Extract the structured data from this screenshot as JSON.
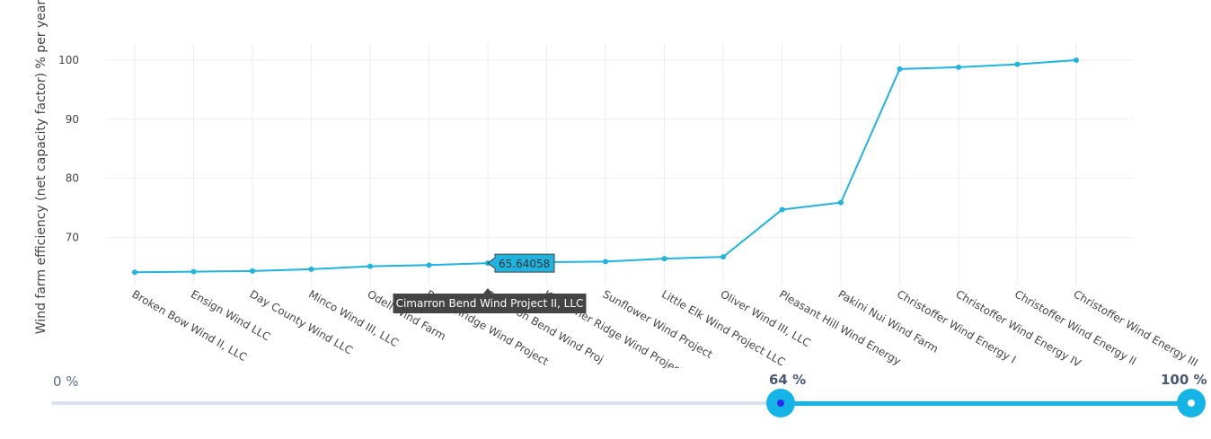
{
  "chart_data": {
    "type": "line",
    "ylabel": "Wind farm efficiency (net capacity factor) % per year",
    "ylim": [
      60.5,
      102
    ],
    "yticks": [
      70,
      80,
      90,
      100
    ],
    "grid": true,
    "categories": [
      "Broken Bow Wind II, LLC",
      "Ensign Wind LLC",
      "Day County Wind LLC",
      "Minco Wind III, LLC",
      "Odell Wind Farm",
      "Breckinridge Wind Project",
      "Cimarron Bend Wind Project II, LLC",
      "Kingfisher Ridge Wind Project",
      "Sunflower Wind Project",
      "Little Elk Wind Project LLC",
      "Oliver Wind III, LLC",
      "Pleasant Hill Wind Energy",
      "Pakini Nui Wind Farm",
      "Christoffer Wind Energy I",
      "Christoffer Wind Energy IV",
      "Christoffer Wind Energy II",
      "Christoffer Wind Energy III"
    ],
    "x_tick_labels": [
      "Broken Bow Wind II, LLC",
      "Ensign Wind LLC",
      "Day County Wind LLC",
      "Minco Wind III, LLC",
      "Odell Wind Farm",
      "Breckinridge Wind Project",
      "Cimarron Bend Wind Proj",
      "Kingfisher Ridge Wind Project",
      "Sunflower Wind Project",
      "Little Elk Wind Project LLC",
      "Oliver Wind III, LLC",
      "Pleasant Hill Wind Energy",
      "Pakini Nui Wind Farm",
      "Christoffer Wind Energy I",
      "Christoffer Wind Energy IV",
      "Christoffer Wind Energy II",
      "Christoffer Wind Energy III"
    ],
    "values": [
      64.1,
      64.2,
      64.3,
      64.6,
      65.1,
      65.3,
      65.64058,
      65.8,
      65.9,
      66.4,
      66.7,
      74.7,
      75.9,
      98.5,
      98.8,
      99.3,
      100.0
    ],
    "color": "#1fb3e0",
    "hover": {
      "index": 6,
      "value_label": "65.64058",
      "name_label": "Cimarron Bend Wind Project II, LLC"
    }
  },
  "range_slider": {
    "min_label": "0 %",
    "max_label": "100 %",
    "low_label": "64 %",
    "high_label": "100 %",
    "low_value": 64,
    "high_value": 100,
    "rail_color": "#dce1f0",
    "fill_color": "#14b5e6",
    "low_dot_color": "#2a2af0",
    "high_dot_color": "#ffffff"
  }
}
